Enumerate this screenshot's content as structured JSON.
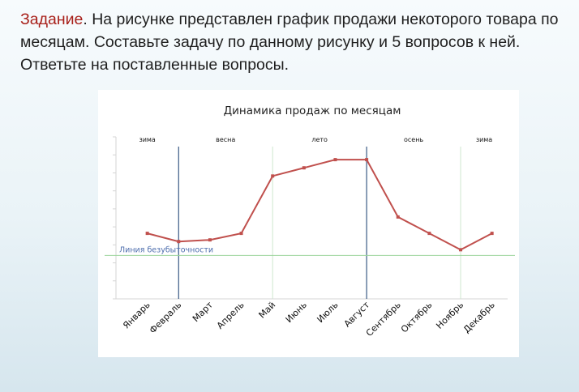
{
  "task": {
    "lead": "Задание",
    "text": ". На рисунке представлен график продажи некоторого товара по месяцам. Составьте задачу по данному рисунку и 5 вопросов к ней. Ответьте на поставленные вопросы."
  },
  "chart_data": {
    "type": "line",
    "title": "Динамика продаж  по месяцам",
    "xlabel": "",
    "ylabel": "",
    "categories": [
      "Январь",
      "Февраль",
      "Март",
      "Апрель",
      "Май",
      "Июнь",
      "Июль",
      "Август",
      "Сентябрь",
      "Октябрь",
      "Ноябрь",
      "Декабрь"
    ],
    "series": [
      {
        "values": [
          4.0,
          3.5,
          3.6,
          4.0,
          7.5,
          8.0,
          8.5,
          8.5,
          5.0,
          4.0,
          3.0,
          4.0
        ]
      }
    ],
    "ylim": [
      0,
      9
    ],
    "breakeven": {
      "label": "Линия безубыточности",
      "value": 3.0
    },
    "seasons": [
      "зима",
      "весна",
      "лето",
      "осень",
      "зима"
    ],
    "season_dividers_after": [
      "Февраль",
      "Май",
      "Август",
      "Ноябрь"
    ],
    "grid": false,
    "colors": {
      "line": "#c0504d",
      "breakeven": "#9bd49b",
      "divider_dark": "#3a5a85",
      "divider_light": "#cfe6cf",
      "task_lead": "#a8201a"
    }
  }
}
